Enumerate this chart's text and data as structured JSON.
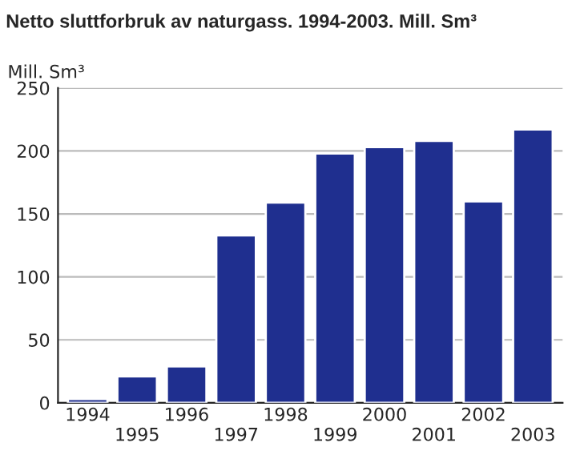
{
  "chart_data": {
    "type": "bar",
    "title": "Netto sluttforbruk av naturgass. 1994-2003. Mill. Sm³",
    "ylabel": "Mill. Sm³",
    "categories": [
      "1994",
      "1995",
      "1996",
      "1997",
      "1998",
      "1999",
      "2000",
      "2001",
      "2002",
      "2003"
    ],
    "values": [
      3,
      21,
      29,
      133,
      159,
      198,
      203,
      208,
      160,
      217
    ],
    "color": "#1f2f8f",
    "ylim": [
      0,
      250
    ],
    "yticks": [
      0,
      50,
      100,
      150,
      200,
      250
    ],
    "grid": "y"
  }
}
